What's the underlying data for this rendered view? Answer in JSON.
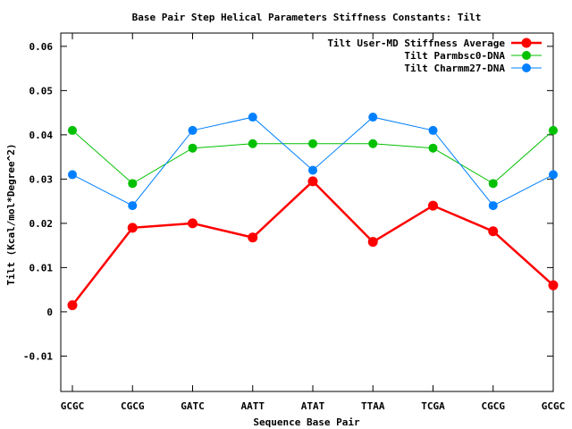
{
  "chart_data": {
    "type": "line",
    "title": "Base Pair Step Helical Parameters Stiffness Constants: Tilt",
    "xlabel": "Sequence Base Pair",
    "ylabel": "Tilt (Kcal/mol*Degree^2)",
    "categories": [
      "GCGC",
      "CGCG",
      "GATC",
      "AATT",
      "ATAT",
      "TTAA",
      "TCGA",
      "CGCG",
      "GCGC"
    ],
    "ylim": [
      -0.018,
      0.063
    ],
    "yticks": [
      -0.01,
      0,
      0.01,
      0.02,
      0.03,
      0.04,
      0.05,
      0.06
    ],
    "ytick_labels": [
      "-0.01",
      "0",
      "0.01",
      "0.02",
      "0.03",
      "0.04",
      "0.05",
      "0.06"
    ],
    "grid": false,
    "legend_position": "top-right",
    "series": [
      {
        "name": "Tilt User-MD Stiffness Average",
        "color": "#ff0000",
        "values": [
          0.0015,
          0.019,
          0.02,
          0.0168,
          0.0295,
          0.0158,
          0.024,
          0.0182,
          0.006
        ]
      },
      {
        "name": "Tilt Parmbsc0-DNA",
        "color": "#00c000",
        "values": [
          0.041,
          0.029,
          0.037,
          0.038,
          0.038,
          0.038,
          0.037,
          0.029,
          0.041
        ]
      },
      {
        "name": "Tilt Charmm27-DNA",
        "color": "#0080ff",
        "values": [
          0.031,
          0.024,
          0.041,
          0.044,
          0.032,
          0.044,
          0.041,
          0.024,
          0.031
        ]
      }
    ]
  }
}
